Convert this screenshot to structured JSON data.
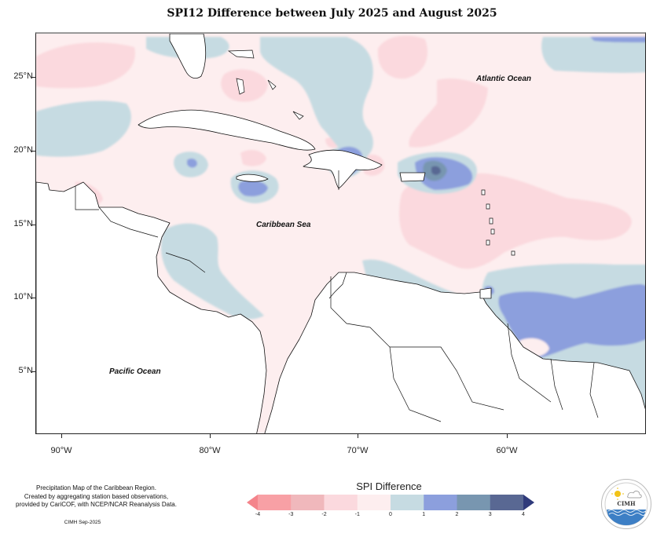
{
  "title": "SPI12 Difference between July 2025 and August 2025",
  "map": {
    "region": "Caribbean",
    "latitude_labels": [
      "25°N",
      "20°N",
      "15°N",
      "10°N",
      "5°N"
    ],
    "longitude_labels": [
      "90°W",
      "80°W",
      "70°W",
      "60°W"
    ],
    "ocean_labels": {
      "atlantic": "Atlantic Ocean",
      "caribbean": "Caribbean Sea",
      "pacific": "Pacific Ocean"
    }
  },
  "legend": {
    "title": "SPI Difference",
    "ticks": [
      "-4",
      "-3",
      "-2",
      "-1",
      "0",
      "1",
      "2",
      "3",
      "4"
    ],
    "bins": [
      {
        "range": "< -4",
        "color": "#f4848b"
      },
      {
        "range": "-4 to -3",
        "color": "#f8a0a5"
      },
      {
        "range": "-3 to -2",
        "color": "#f0b8bc"
      },
      {
        "range": "-2 to -1",
        "color": "#fbd9de"
      },
      {
        "range": "-1 to 0",
        "color": "#fdeeef"
      },
      {
        "range": "0 to 1",
        "color": "#c6dbe2"
      },
      {
        "range": "1 to 2",
        "color": "#8c9fdd"
      },
      {
        "range": "2 to 3",
        "color": "#7896b0"
      },
      {
        "range": "3 to 4",
        "color": "#596893"
      },
      {
        "range": "> 4",
        "color": "#2f3a7b"
      }
    ]
  },
  "credits": {
    "line1": "Precipitation Map of the Caribbean Region.",
    "line2": "Created by aggregating station based observations,",
    "line3": "provided by CariCOF, with NCEP/NCAR Reanalysis Data.",
    "date": "CIMH Sep-2025"
  },
  "logo": {
    "text": "CIMH"
  }
}
